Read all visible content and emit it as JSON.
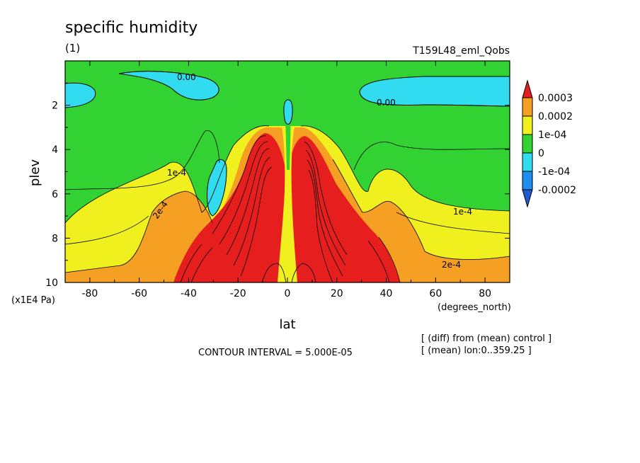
{
  "chart_data": {
    "type": "contour",
    "title": "specific humidity",
    "panel_label": "(1)",
    "run_label": "T159L48_eml_Qobs",
    "xlabel": "lat",
    "x_units": "(degrees_north)",
    "ylabel": "plev",
    "y_units": "(x1E4 Pa)",
    "xlim": [
      -90,
      90
    ],
    "ylim": [
      0,
      10
    ],
    "y_inverted": true,
    "x_ticks": [
      "-80",
      "-60",
      "-40",
      "-20",
      "0",
      "20",
      "40",
      "60",
      "80"
    ],
    "x_tick_values": [
      -80,
      -60,
      -40,
      -20,
      0,
      20,
      40,
      60,
      80
    ],
    "y_ticks": [
      "2",
      "4",
      "6",
      "8",
      "10"
    ],
    "y_tick_values": [
      2,
      4,
      6,
      8,
      10
    ],
    "contour_interval_text": "CONTOUR INTERVAL = 5.000E-05",
    "notes": [
      "[ (diff) from (mean) control ]",
      "[ (mean) lon:0..359.25 ]"
    ],
    "colorbar": {
      "labels": [
        "0.0003",
        "0.0002",
        "1e-04",
        "0",
        "-1e-04",
        "-0.0002"
      ],
      "colors": [
        "#e61e1e",
        "#f5a023",
        "#f0f01e",
        "#32d232",
        "#32dcf0",
        "#1e8cf0",
        "#1e5ad2"
      ]
    },
    "contour_labels": [
      "0.00",
      "0.00",
      "1e-4",
      "2e-4",
      "1e-4",
      "2e-4"
    ],
    "colors": {
      "red": "#e61e1e",
      "orange": "#f5a023",
      "yellow": "#f0f01e",
      "green": "#32d232",
      "cyan": "#32dcf0",
      "blue": "#1e8cf0"
    }
  }
}
